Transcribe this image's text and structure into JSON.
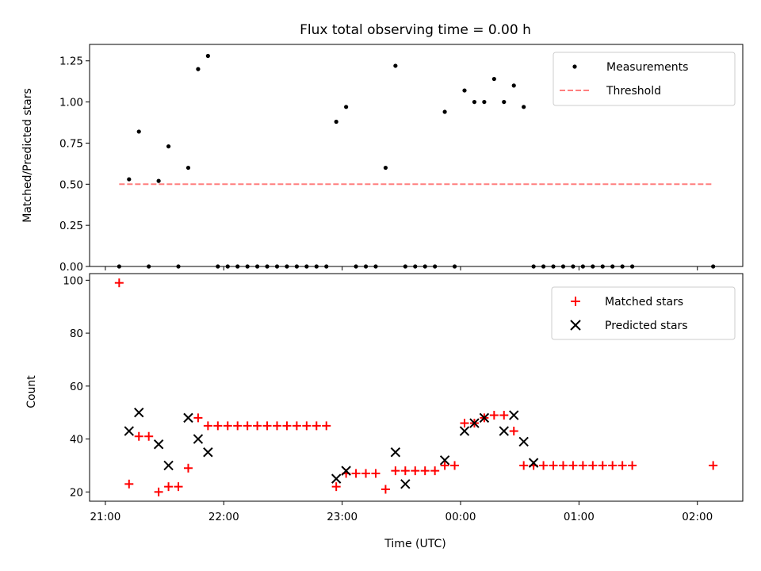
{
  "title": "Flux total observing time = 0.00 h",
  "colors": {
    "measure": "#000000",
    "threshold": "#ff7f7f",
    "matched": "#ff0000",
    "predicted": "#000000"
  },
  "chart_data": [
    {
      "type": "scatter",
      "ylabel": "Matched/Predicted stars",
      "ylim": [
        0,
        1.35
      ],
      "yticks": [
        0.0,
        0.25,
        0.5,
        0.75,
        1.0,
        1.25
      ],
      "ytick_labels": [
        "0.00",
        "0.25",
        "0.50",
        "0.75",
        "1.00",
        "1.25"
      ],
      "xlim": [
        "20:52",
        "02:23"
      ],
      "legend_position": "top-right",
      "series": [
        {
          "name": "Measurements",
          "style": "dot",
          "x": [
            "21:07",
            "21:12",
            "21:17",
            "21:22",
            "21:27",
            "21:32",
            "21:37",
            "21:42",
            "21:47",
            "21:52",
            "21:57",
            "22:02",
            "22:07",
            "22:12",
            "22:17",
            "22:22",
            "22:27",
            "22:32",
            "22:37",
            "22:42",
            "22:47",
            "22:52",
            "22:57",
            "23:02",
            "23:07",
            "23:12",
            "23:17",
            "23:22",
            "23:27",
            "23:32",
            "23:37",
            "23:42",
            "23:47",
            "23:52",
            "23:57",
            "00:02",
            "00:07",
            "00:12",
            "00:17",
            "00:22",
            "00:27",
            "00:32",
            "00:37",
            "00:42",
            "00:47",
            "00:52",
            "00:57",
            "01:02",
            "01:07",
            "01:12",
            "01:17",
            "01:22",
            "01:27",
            "02:08"
          ],
          "y": [
            0,
            0.53,
            0.82,
            0,
            0.52,
            0.73,
            0,
            0.6,
            1.2,
            1.28,
            0,
            0,
            0,
            0,
            0,
            0,
            0,
            0,
            0,
            0,
            0,
            0,
            0.88,
            0.97,
            0,
            0,
            0,
            0.6,
            1.22,
            0,
            0,
            0,
            0,
            0.94,
            0,
            1.07,
            1.0,
            1.0,
            1.14,
            1.0,
            1.1,
            0.97,
            0,
            0,
            0,
            0,
            0,
            0,
            0,
            0,
            0,
            0,
            0,
            0
          ]
        },
        {
          "name": "Threshold",
          "style": "dashed-line",
          "x": [
            "21:07",
            "02:08"
          ],
          "y": [
            0.5,
            0.5
          ]
        }
      ]
    },
    {
      "type": "scatter",
      "ylabel": "Count",
      "xlabel": "Time (UTC)",
      "ylim": [
        16.5,
        102.5
      ],
      "yticks": [
        20,
        40,
        60,
        80,
        100
      ],
      "ytick_labels": [
        "20",
        "40",
        "60",
        "80",
        "100"
      ],
      "xlim": [
        "20:52",
        "02:23"
      ],
      "xticks": [
        "21:00",
        "22:00",
        "23:00",
        "00:00",
        "01:00",
        "02:00"
      ],
      "xtick_labels": [
        "21:00",
        "22:00",
        "23:00",
        "00:00",
        "01:00",
        "02:00"
      ],
      "legend_position": "top-right",
      "series": [
        {
          "name": "Matched stars",
          "style": "plus",
          "x": [
            "21:07",
            "21:12",
            "21:17",
            "21:22",
            "21:27",
            "21:32",
            "21:37",
            "21:42",
            "21:47",
            "21:52",
            "21:57",
            "22:02",
            "22:07",
            "22:12",
            "22:17",
            "22:22",
            "22:27",
            "22:32",
            "22:37",
            "22:42",
            "22:47",
            "22:52",
            "22:57",
            "23:02",
            "23:07",
            "23:12",
            "23:17",
            "23:22",
            "23:27",
            "23:32",
            "23:37",
            "23:42",
            "23:47",
            "23:52",
            "23:57",
            "00:02",
            "00:07",
            "00:12",
            "00:17",
            "00:22",
            "00:27",
            "00:32",
            "00:37",
            "00:42",
            "00:47",
            "00:52",
            "00:57",
            "01:02",
            "01:07",
            "01:12",
            "01:17",
            "01:22",
            "01:27",
            "02:08"
          ],
          "y": [
            99,
            23,
            41,
            41,
            20,
            22,
            22,
            29,
            48,
            45,
            45,
            45,
            45,
            45,
            45,
            45,
            45,
            45,
            45,
            45,
            45,
            45,
            22,
            27,
            27,
            27,
            27,
            21,
            28,
            28,
            28,
            28,
            28,
            30,
            30,
            46,
            46,
            48,
            49,
            49,
            43,
            30,
            30,
            30,
            30,
            30,
            30,
            30,
            30,
            30,
            30,
            30,
            30,
            30
          ]
        },
        {
          "name": "Predicted stars",
          "style": "x",
          "x": [
            "21:12",
            "21:17",
            "21:27",
            "21:32",
            "21:42",
            "21:47",
            "21:52",
            "22:57",
            "23:02",
            "23:27",
            "23:32",
            "23:52",
            "00:02",
            "00:07",
            "00:12",
            "00:22",
            "00:27",
            "00:32",
            "00:37"
          ],
          "y": [
            43,
            50,
            38,
            30,
            48,
            40,
            35,
            25,
            28,
            35,
            23,
            32,
            43,
            46,
            48,
            43,
            49,
            39,
            31
          ]
        }
      ]
    }
  ]
}
